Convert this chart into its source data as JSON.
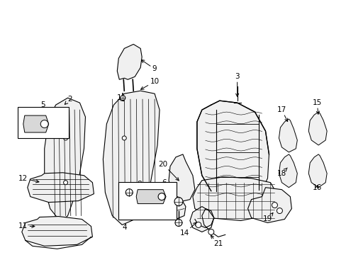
{
  "background_color": "#ffffff",
  "line_color": "#000000",
  "fig_width": 4.89,
  "fig_height": 3.6,
  "dpi": 100,
  "font_size": 7.5
}
